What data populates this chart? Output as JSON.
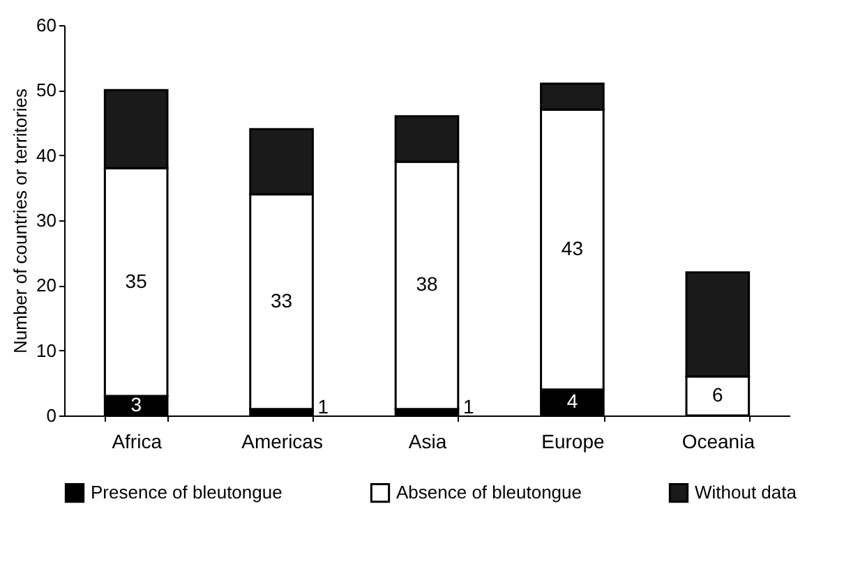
{
  "chart_data": {
    "type": "bar",
    "stacked": true,
    "ylabel": "Number of countries or territories",
    "categories": [
      "Africa",
      "Americas",
      "Asia",
      "Europe",
      "Oceania"
    ],
    "series": [
      {
        "name": "Presence of bleutongue",
        "color": "#000000",
        "values": [
          3,
          1,
          1,
          4,
          0
        ],
        "value_labels": [
          "3",
          "1",
          "1",
          "4",
          null
        ]
      },
      {
        "name": "Absence of bleutongue",
        "color": "#ffffff",
        "values": [
          35,
          33,
          38,
          43,
          6
        ],
        "value_labels": [
          "35",
          "33",
          "38",
          "43",
          "6"
        ]
      },
      {
        "name": "Without data",
        "color": "#1a1a1a",
        "values": [
          12,
          10,
          7,
          4,
          16
        ],
        "value_labels": [
          null,
          null,
          null,
          null,
          null
        ]
      }
    ],
    "ylim": [
      0,
      60
    ],
    "yticks": [
      0,
      10,
      20,
      30,
      40,
      50,
      60
    ],
    "grid": false,
    "legend": "bottom"
  }
}
